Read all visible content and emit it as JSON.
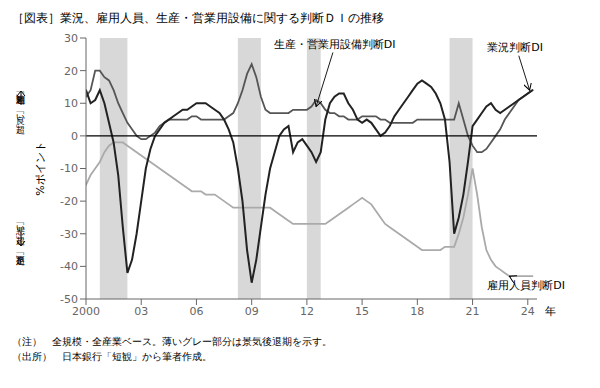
{
  "chart_data": {
    "type": "line",
    "title": "［図表］業況、雇用人員、生産・営業用設備に関する判断ＤＩの推移",
    "ylabel": "%ポイント",
    "xlabel": "年",
    "note": "（注）　全規模・全産業ベース。薄いグレー部分は景気後退期を示す。",
    "source": "（出所）　日本銀行「短観」から筆者作成。",
    "side_labels": [
      "「過剰」超",
      "「良い」超",
      "「悪い」超",
      "「不足」超"
    ],
    "grid": false,
    "xlim": [
      2000,
      2024.5
    ],
    "ylim": [
      -50,
      30
    ],
    "yticks": [
      -50,
      -40,
      -30,
      -20,
      -10,
      0,
      10,
      20,
      30
    ],
    "xticks": [
      2000,
      {
        "value": 2003,
        "label": "03"
      },
      {
        "value": 2006,
        "label": "06"
      },
      {
        "value": 2009,
        "label": "09"
      },
      {
        "value": 2012,
        "label": "12"
      },
      {
        "value": 2015,
        "label": "15"
      },
      {
        "value": 2018,
        "label": "18"
      },
      {
        "value": 2021,
        "label": "21"
      },
      {
        "value": 2024,
        "label": "24"
      }
    ],
    "recession_periods": [
      [
        2000.75,
        2002.25
      ],
      [
        2008.25,
        2009.5
      ],
      [
        2012.0,
        2012.75
      ],
      [
        2019.75,
        2021.0
      ]
    ],
    "recession_color": "#d8d8d8",
    "reference_lines": [
      0
    ],
    "x": [
      2000,
      2000.25,
      2000.5,
      2000.75,
      2001,
      2001.25,
      2001.5,
      2001.75,
      2002,
      2002.25,
      2002.5,
      2002.75,
      2003,
      2003.25,
      2003.5,
      2003.75,
      2004,
      2004.25,
      2004.5,
      2004.75,
      2005,
      2005.25,
      2005.5,
      2005.75,
      2006,
      2006.25,
      2006.5,
      2006.75,
      2007,
      2007.25,
      2007.5,
      2007.75,
      2008,
      2008.25,
      2008.5,
      2008.75,
      2009,
      2009.25,
      2009.5,
      2009.75,
      2010,
      2010.25,
      2010.5,
      2010.75,
      2011,
      2011.25,
      2011.5,
      2011.75,
      2012,
      2012.25,
      2012.5,
      2012.75,
      2013,
      2013.25,
      2013.5,
      2013.75,
      2014,
      2014.25,
      2014.5,
      2014.75,
      2015,
      2015.25,
      2015.5,
      2015.75,
      2016,
      2016.25,
      2016.5,
      2016.75,
      2017,
      2017.25,
      2017.5,
      2017.75,
      2018,
      2018.25,
      2018.5,
      2018.75,
      2019,
      2019.25,
      2019.5,
      2019.75,
      2020,
      2020.25,
      2020.5,
      2020.75,
      2021,
      2021.25,
      2021.5,
      2021.75,
      2022,
      2022.25,
      2022.5,
      2022.75,
      2023,
      2023.25,
      2023.5,
      2023.75,
      2024,
      2024.25
    ],
    "series": [
      {
        "name": "雇用人員判断DI",
        "color": "#aaaaaa",
        "values": [
          -15,
          -12,
          -10,
          -8,
          -5,
          -3,
          -2,
          -2,
          -2,
          -3,
          -4,
          -5,
          -6,
          -7,
          -8,
          -9,
          -10,
          -11,
          -12,
          -13,
          -14,
          -15,
          -16,
          -17,
          -17,
          -17,
          -18,
          -18,
          -18,
          -19,
          -20,
          -21,
          -22,
          -22,
          -22,
          -22,
          -22,
          -22,
          -22,
          -22,
          -22,
          -23,
          -24,
          -25,
          -26,
          -27,
          -27,
          -27,
          -27,
          -27,
          -27,
          -27,
          -27,
          -26,
          -25,
          -24,
          -23,
          -22,
          -21,
          -20,
          -19,
          -20,
          -21,
          -23,
          -25,
          -27,
          -28,
          -29,
          -30,
          -31,
          -32,
          -33,
          -34,
          -35,
          -35,
          -35,
          -35,
          -35,
          -34,
          -34,
          -34,
          -30,
          -25,
          -18,
          -10,
          -18,
          -28,
          -35,
          -38,
          -40,
          -41,
          -42,
          -43,
          -43,
          -43,
          -43,
          -43,
          -43
        ]
      },
      {
        "name": "生産・営業用設備判断DI",
        "color": "#555555",
        "values": [
          12,
          14,
          20,
          20,
          18,
          17,
          14,
          10,
          7,
          4,
          2,
          0,
          -1,
          -1,
          0,
          1,
          3,
          4,
          5,
          5,
          5,
          5,
          5,
          6,
          6,
          5,
          5,
          5,
          5,
          5,
          5,
          6,
          7,
          10,
          14,
          19,
          22,
          18,
          12,
          8,
          7,
          7,
          7,
          7,
          7,
          8,
          8,
          8,
          8,
          9,
          11,
          10,
          8,
          7,
          7,
          6,
          6,
          5,
          5,
          5,
          6,
          6,
          6,
          6,
          5,
          5,
          4,
          4,
          4,
          4,
          4,
          4,
          5,
          5,
          5,
          5,
          5,
          5,
          5,
          5,
          5,
          10,
          5,
          0,
          -3,
          -5,
          -5,
          -4,
          -2,
          0,
          2,
          5,
          7,
          9,
          11,
          12,
          13,
          14
        ]
      },
      {
        "name": "業況判断DI",
        "color": "#222222",
        "values": [
          14,
          10,
          11,
          14,
          10,
          4,
          -2,
          -12,
          -28,
          -42,
          -38,
          -30,
          -20,
          -10,
          -4,
          0,
          2,
          4,
          5,
          6,
          7,
          8,
          8,
          9,
          10,
          10,
          10,
          9,
          8,
          7,
          5,
          2,
          -2,
          -10,
          -20,
          -35,
          -45,
          -38,
          -28,
          -18,
          -10,
          -5,
          0,
          2,
          3,
          -5,
          -2,
          -1,
          -3,
          -5,
          -8,
          -5,
          5,
          10,
          12,
          13,
          13,
          10,
          8,
          5,
          4,
          5,
          4,
          2,
          0,
          1,
          3,
          6,
          8,
          10,
          12,
          14,
          16,
          17,
          16,
          15,
          13,
          10,
          5,
          -8,
          -30,
          -25,
          -18,
          -8,
          3,
          5,
          7,
          9,
          10,
          8,
          7,
          8,
          9,
          10,
          11,
          12,
          13,
          14
        ]
      }
    ],
    "annotations": [
      {
        "text": "業況判断DI",
        "x": 2024.1,
        "y": 14,
        "text_x": 2021.8,
        "text_y": 26
      },
      {
        "text": "生産・営業用設備判断DI",
        "x": 2012.5,
        "y": 9,
        "text_x": 2010.2,
        "text_y": 27
      },
      {
        "text": "雇用人員判断DI",
        "x": 2023.0,
        "y": -43,
        "text_x": 2021.8,
        "text_y": -47
      }
    ]
  }
}
